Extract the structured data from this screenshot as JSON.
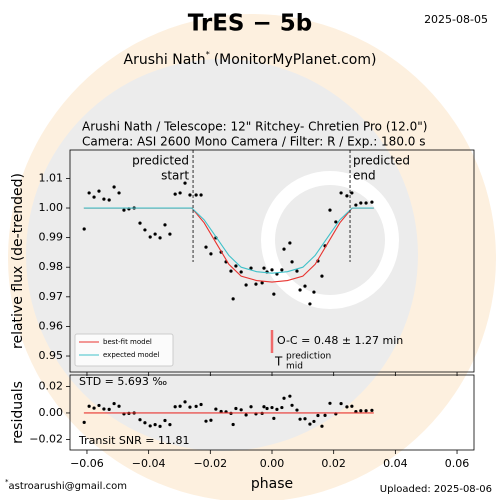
{
  "header": {
    "title": "TrES − 5b",
    "date": "2025-08-05",
    "author": "Arushi Nath",
    "author_mark": "*",
    "author_site": "(MonitorMyPlanet.com)"
  },
  "chart_data": [
    {
      "type": "scatter",
      "title": "Arushi Nath / Telescope: 12\" Ritchey- Chretien Pro (12.0\")",
      "subtitle": "Camera: ASI 2600 Mono Camera / Filter: R / Exp.: 180.0 s",
      "ylabel": "relative flux (de-trended)",
      "xlim": [
        -0.0655,
        0.0655
      ],
      "ylim": [
        0.9446,
        1.0196
      ],
      "xticks": [
        {
          "value": -0.06,
          "label": "−0.06"
        },
        {
          "value": -0.04,
          "label": "−0.04"
        },
        {
          "value": -0.02,
          "label": "−0.02"
        },
        {
          "value": 0,
          "label": "0.00"
        },
        0.02,
        0.04,
        0.06
      ],
      "yticks": [
        0.95,
        0.96,
        0.97,
        0.98,
        0.99,
        {
          "value": 1,
          "label": "1.00"
        },
        1.01
      ],
      "legend": "lower left",
      "series": [
        {
          "type": "scatter",
          "color": "#000000",
          "x": [
            -0.0609,
            -0.0593,
            -0.0577,
            -0.0561,
            -0.0545,
            -0.0528,
            -0.0512,
            -0.0496,
            -0.048,
            -0.0464,
            -0.0447,
            -0.0428,
            -0.0412,
            -0.0395,
            -0.0379,
            -0.0363,
            -0.0347,
            -0.0331,
            -0.0314,
            -0.0298,
            -0.0282,
            -0.0266,
            -0.0246,
            -0.023,
            -0.0214,
            -0.0198,
            -0.0182,
            -0.0165,
            -0.0149,
            -0.0133,
            -0.0126,
            -0.0117,
            -0.01,
            -0.0084,
            -0.0068,
            -0.0052,
            -0.0032,
            -0.0026,
            -0.0016,
            0,
            0.0006,
            0.0016,
            0.0032,
            0.0039,
            0.0058,
            0.0065,
            0.0081,
            0.0091,
            0.0107,
            0.0123,
            0.0136,
            0.0149,
            0.0162,
            0.0172,
            0.0188,
            0.0207,
            0.0224,
            0.0243,
            0.0259,
            0.0272,
            0.0288,
            0.0305,
            0.0324
          ],
          "values": [
            0.9929,
            1.0051,
            1.0037,
            1.0057,
            1.003,
            1.0027,
            1.0071,
            1.0051,
            0.9993,
            0.9997,
            1,
            0.9949,
            0.9926,
            0.9902,
            0.9912,
            0.9899,
            0.9943,
            0.9912,
            1.0047,
            1.0051,
            1.0084,
            1.0044,
            1.0044,
            1.0044,
            0.9868,
            0.9845,
            0.9899,
            0.9851,
            0.9818,
            0.9787,
            0.9693,
            0.9804,
            0.9784,
            0.974,
            0.9797,
            0.9743,
            0.9747,
            0.9797,
            0.9784,
            0.9791,
            0.9709,
            0.9777,
            0.9791,
            0.9861,
            0.9882,
            0.9818,
            0.9787,
            0.9723,
            0.9736,
            0.9676,
            0.9716,
            0.9821,
            0.977,
            0.9872,
            0.9993,
            0.9953,
            1.0051,
            1.0041,
            1.0051,
            1.001,
            1.0017,
            1.0017,
            1.002
          ]
        },
        {
          "type": "line",
          "name": "best-fit model",
          "color": "#e8332f",
          "x": [
            -0.061,
            -0.026,
            -0.022,
            -0.018,
            -0.014,
            -0.01,
            -0.005,
            0,
            0.005,
            0.01,
            0.014,
            0.018,
            0.022,
            0.026,
            0.033
          ],
          "values": [
            1,
            1,
            0.995,
            0.988,
            0.981,
            0.977,
            0.9755,
            0.975,
            0.9755,
            0.977,
            0.981,
            0.988,
            0.995,
            1,
            1
          ]
        },
        {
          "type": "line",
          "name": "expected model",
          "color": "#3fc1c9",
          "x": [
            -0.061,
            -0.026,
            -0.022,
            -0.018,
            -0.014,
            -0.01,
            -0.005,
            0,
            0.005,
            0.01,
            0.014,
            0.018,
            0.022,
            0.026,
            0.033
          ],
          "values": [
            1,
            1,
            0.996,
            0.99,
            0.984,
            0.98,
            0.9785,
            0.978,
            0.9785,
            0.98,
            0.984,
            0.99,
            0.996,
            1,
            1
          ]
        }
      ],
      "annotations": [
        {
          "lines": [
            "predicted",
            "start"
          ],
          "x": -0.0256
        },
        {
          "lines": [
            "predicted",
            "end"
          ],
          "x": 0.0253
        },
        {
          "text": "O-C = 0.48 ± 1.27 min"
        }
      ],
      "tmid": {
        "x": 0,
        "label": "T",
        "sup": "prediction",
        "sub": "mid",
        "color": "#f06a6a"
      }
    },
    {
      "type": "scatter",
      "ylabel": "residuals",
      "xlabel": "phase",
      "xlim": [
        -0.0655,
        0.0655
      ],
      "ylim": [
        -0.028,
        0.0287
      ],
      "xticks": [
        {
          "value": -0.06,
          "label": "−0.06"
        },
        {
          "value": -0.04,
          "label": "−0.04"
        },
        {
          "value": -0.02,
          "label": "−0.02"
        },
        {
          "value": 0,
          "label": "0.00"
        },
        0.02,
        0.04,
        0.06
      ],
      "yticks": [
        {
          "value": -0.02,
          "label": "−0.02"
        },
        {
          "value": 0,
          "label": "0.00"
        },
        0.02
      ],
      "series": [
        {
          "type": "scatter",
          "color": "#000000",
          "x": [
            -0.0609,
            -0.0593,
            -0.0577,
            -0.0561,
            -0.0545,
            -0.0528,
            -0.0512,
            -0.0496,
            -0.048,
            -0.0464,
            -0.0447,
            -0.0428,
            -0.0412,
            -0.0395,
            -0.0379,
            -0.0363,
            -0.0347,
            -0.0331,
            -0.0314,
            -0.0298,
            -0.0282,
            -0.0266,
            -0.0246,
            -0.023,
            -0.0214,
            -0.0198,
            -0.0182,
            -0.0165,
            -0.0149,
            -0.0133,
            -0.0126,
            -0.0117,
            -0.01,
            -0.0084,
            -0.0068,
            -0.0052,
            -0.0032,
            -0.0026,
            -0.0016,
            0,
            0.0006,
            0.0016,
            0.0032,
            0.0039,
            0.0058,
            0.0065,
            0.0081,
            0.0091,
            0.0107,
            0.0123,
            0.0136,
            0.0149,
            0.0162,
            0.0172,
            0.0188,
            0.0207,
            0.0224,
            0.0243,
            0.0259,
            0.0272,
            0.0288,
            0.0305,
            0.0324
          ],
          "values": [
            -0.0071,
            0.0051,
            0.0037,
            0.0057,
            0.003,
            0.0027,
            0.0071,
            0.0051,
            -0.0007,
            -0.0003,
            0,
            -0.0051,
            -0.0074,
            -0.0098,
            -0.0088,
            -0.0101,
            -0.0057,
            -0.0088,
            0.0047,
            0.0051,
            0.0084,
            0.0044,
            0.005,
            0.0064,
            -0.0062,
            -0.0055,
            0.0029,
            0.0011,
            0.0008,
            -0.0003,
            -0.0087,
            0.0034,
            0.0024,
            -0.0015,
            0.0047,
            -0.0007,
            -0.0003,
            0.0047,
            0.0034,
            0.0041,
            -0.0041,
            0.0027,
            0.0041,
            0.0111,
            0.0127,
            0.0058,
            0.0022,
            -0.0047,
            -0.0044,
            -0.0084,
            -0.0064,
            -0.0019,
            -0.01,
            -0.0018,
            0.0073,
            -0.0007,
            0.0071,
            0.0046,
            0.0051,
            0.001,
            0.0017,
            0.0017,
            0.002
          ]
        },
        {
          "type": "line",
          "color": "#e8332f",
          "x": [
            -0.061,
            0.033
          ],
          "values": [
            0,
            0
          ]
        }
      ],
      "annotations": [
        {
          "text": "STD = 5.693 ‰"
        },
        {
          "text": "Transit SNR = 11.81"
        }
      ]
    }
  ],
  "footer": {
    "mark": "*",
    "email": "astroarushi@gmail.com",
    "uploaded": "Uploaded: 2025-08-06"
  }
}
